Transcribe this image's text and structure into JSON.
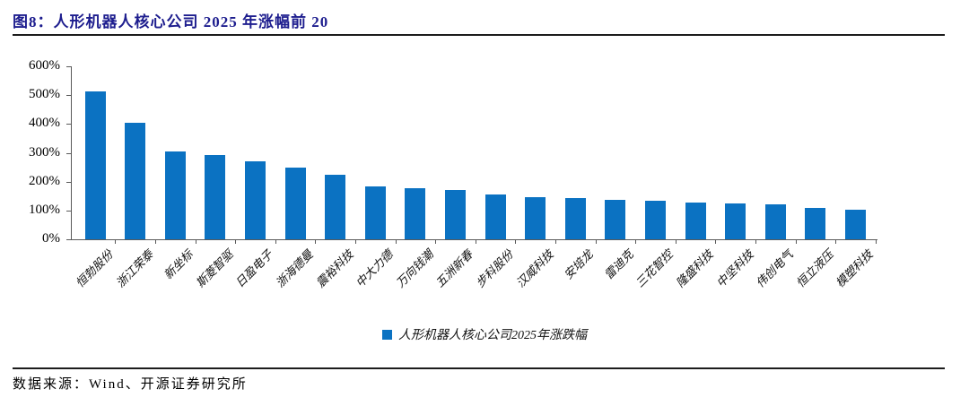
{
  "header": {
    "title": "图8：人形机器人核心公司 2025 年涨幅前 20"
  },
  "footer": {
    "source": "数据来源：Wind、开源证券研究所"
  },
  "colors": {
    "bar": "#0b72c2",
    "title": "#1d1d8e",
    "rule": "#1c1c1c",
    "axis": "#595959"
  },
  "chart_data": {
    "type": "bar",
    "title": "人形机器人核心公司 2025 年涨幅前 20",
    "legend_label": "人形机器人核心公司2025年涨跌幅",
    "legend_position": "bottom",
    "grid": false,
    "unit": "%",
    "xlabel": "",
    "ylabel": "",
    "ylim": [
      0,
      600
    ],
    "ytick_step": 100,
    "ytick_labels": [
      "0%",
      "100%",
      "200%",
      "300%",
      "400%",
      "500%",
      "600%"
    ],
    "categories": [
      "恒勃股份",
      "浙江荣泰",
      "新坐标",
      "斯菱智驱",
      "日盈电子",
      "浙海德曼",
      "震裕科技",
      "中大力德",
      "万向钱潮",
      "五洲新春",
      "步科股份",
      "汉威科技",
      "安培龙",
      "雷迪克",
      "三花智控",
      "隆盛科技",
      "中坚科技",
      "伟创电气",
      "恒立液压",
      "模塑科技"
    ],
    "values": [
      512,
      403,
      306,
      291,
      270,
      250,
      224,
      184,
      178,
      172,
      157,
      147,
      142,
      137,
      133,
      128,
      126,
      121,
      110,
      103
    ]
  }
}
